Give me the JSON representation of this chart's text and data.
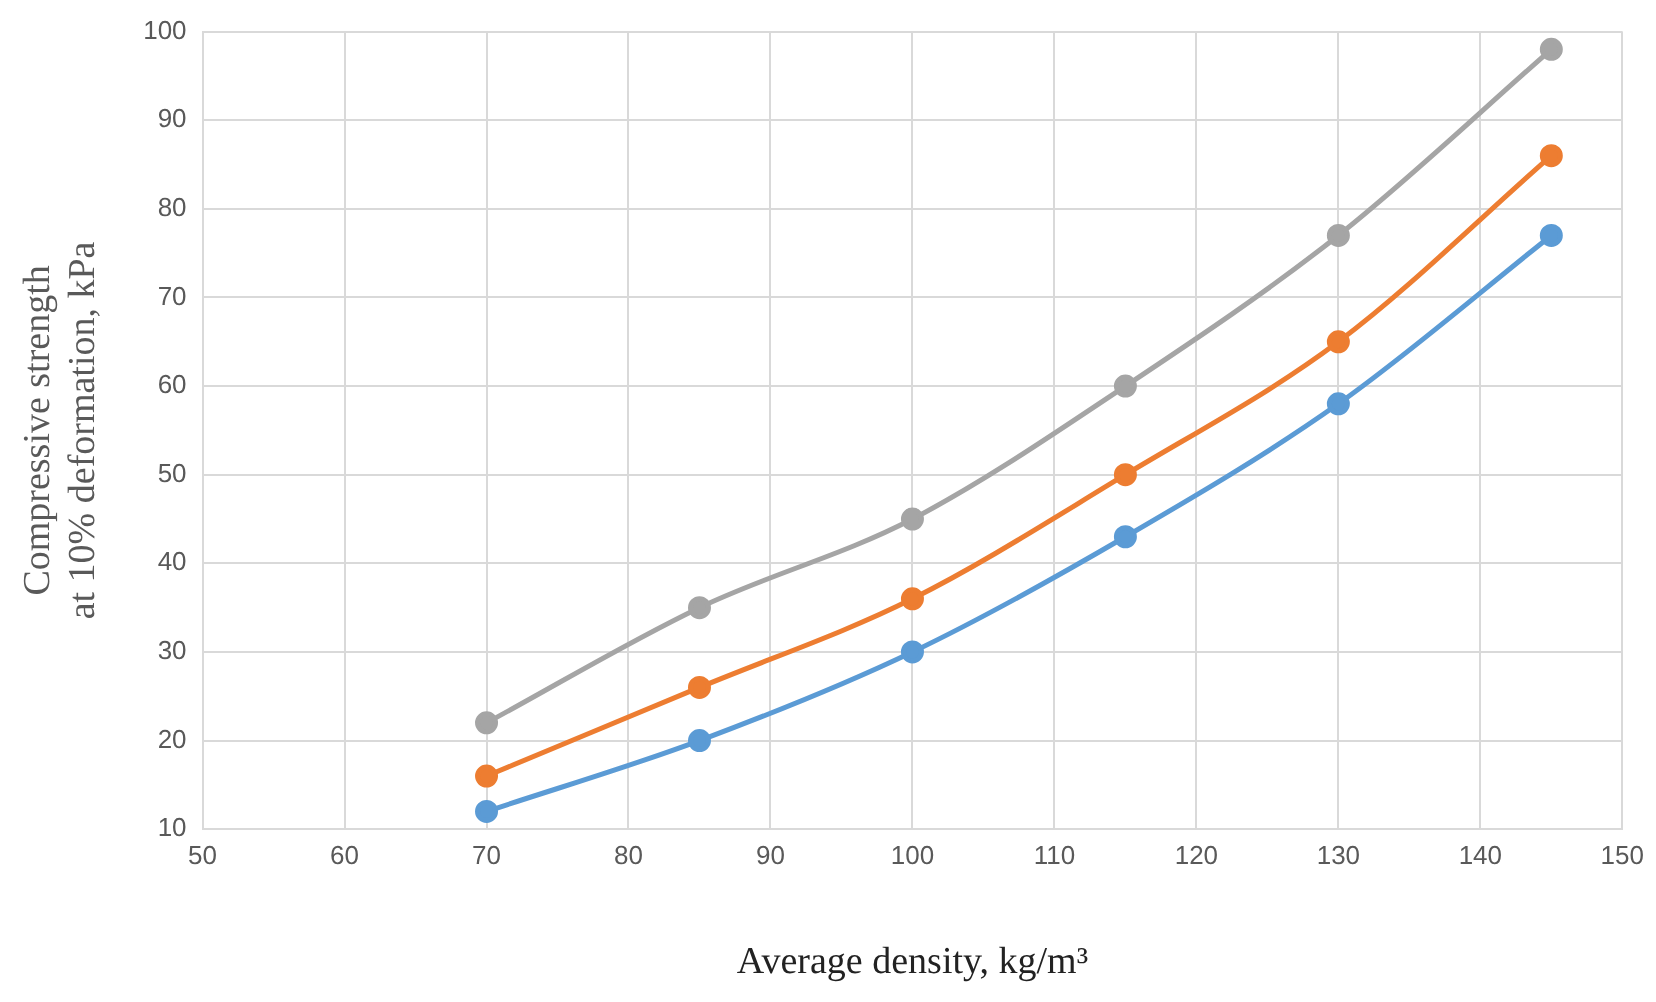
{
  "chart_data": {
    "type": "line",
    "xlabel": "Average density, kg/m³",
    "ylabel": "Compressive strength at 10% deformation, kPa",
    "x": [
      70,
      85,
      100,
      115,
      130,
      145
    ],
    "series": [
      {
        "color": "#a5a5a5",
        "values": [
          22,
          35,
          45,
          60,
          77,
          98
        ]
      },
      {
        "color": "#ed7d31",
        "values": [
          16,
          26,
          36,
          50,
          65,
          86
        ]
      },
      {
        "color": "#5b9bd5",
        "values": [
          12,
          20,
          30,
          43,
          58,
          77
        ]
      }
    ],
    "xlim": [
      50,
      150
    ],
    "xticks": [
      50,
      60,
      70,
      80,
      90,
      100,
      110,
      120,
      130,
      140,
      150
    ],
    "ylim": [
      10,
      100
    ],
    "yticks": [
      10,
      20,
      30,
      40,
      50,
      60,
      70,
      80,
      90,
      100
    ],
    "grid": true,
    "marker": "circle"
  }
}
